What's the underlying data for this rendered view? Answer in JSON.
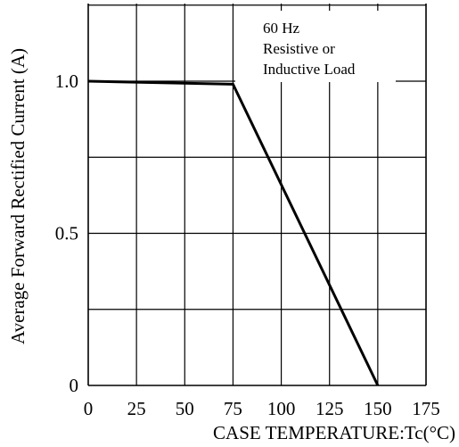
{
  "chart_data": {
    "type": "line",
    "xlabel": "CASE TEMPERATURE:Tc(°C)",
    "ylabel": "Average Forward Rectified Current (A)",
    "xlim": [
      0,
      175
    ],
    "ylim": [
      0,
      1.2
    ],
    "x_ticks": [
      0,
      25,
      50,
      75,
      100,
      125,
      150,
      175
    ],
    "x_tick_labels": [
      "0",
      "25",
      "50",
      "75",
      "100",
      "125",
      "150",
      "175"
    ],
    "y_ticks": [
      0,
      0.5,
      1.0
    ],
    "y_tick_labels": [
      "0",
      "0.5",
      "1.0"
    ],
    "x_gridlines": [
      0,
      25,
      50,
      75,
      100,
      125,
      150,
      175
    ],
    "y_gridlines": [
      0,
      0.25,
      0.5,
      0.75,
      1.0,
      1.25
    ],
    "grid": true,
    "series": [
      {
        "x": [
          0,
          75,
          150
        ],
        "y": [
          1.0,
          0.99,
          0.0
        ]
      }
    ],
    "annotations": [
      "60 Hz",
      "Resistive or",
      "Inductive Load"
    ],
    "colors": {
      "line": "#000000",
      "grid": "#000000",
      "background": "#ffffff"
    }
  }
}
